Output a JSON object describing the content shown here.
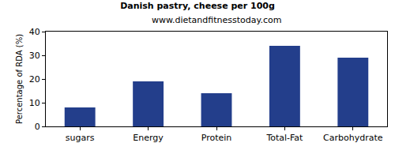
{
  "chart_data": {
    "type": "bar",
    "title": "Danish pastry, cheese per 100g",
    "subtitle": "www.dietandfitnesstoday.com",
    "y_label": "Percentage of RDA (%)",
    "categories": [
      "sugars",
      "Energy",
      "Protein",
      "Total-Fat",
      "Carbohydrate"
    ],
    "values": [
      8,
      19,
      14,
      34,
      29
    ],
    "color": "#233e8b",
    "ylim": [
      0,
      40
    ],
    "yticks": [
      0,
      10,
      20,
      30,
      40
    ],
    "grid": false
  }
}
